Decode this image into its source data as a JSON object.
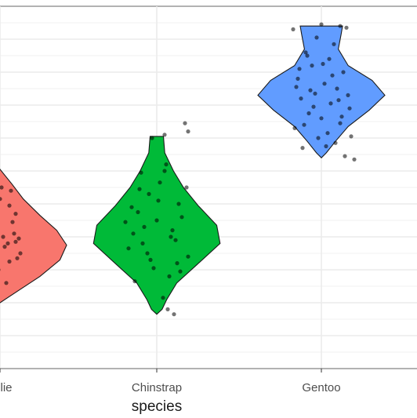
{
  "chart_data": {
    "type": "violin",
    "title": "",
    "xlabel": "species",
    "ylabel": "",
    "categories": [
      "Adelie",
      "Chinstrap",
      "Gentoo"
    ],
    "x_tick_labels": [
      "lie",
      "Chinstrap",
      "Gentoo"
    ],
    "ylim": [
      0,
      22
    ],
    "grid": true,
    "legend": "none",
    "series": [
      {
        "category": "Adelie",
        "color": "#F8766D",
        "range": [
          4.0,
          12.1
        ],
        "profile": [
          [
            4.0,
            0.0
          ],
          [
            4.8,
            0.3
          ],
          [
            5.6,
            0.6
          ],
          [
            6.6,
            0.9
          ],
          [
            7.5,
            1.0
          ],
          [
            8.4,
            0.85
          ],
          [
            9.3,
            0.6
          ],
          [
            10.3,
            0.35
          ],
          [
            11.2,
            0.18
          ],
          [
            12.1,
            0.0
          ]
        ],
        "points": [
          [
            -0.05,
            11.9
          ],
          [
            0.06,
            6.5
          ],
          [
            -0.1,
            7.2
          ],
          [
            0.02,
            8.0
          ],
          [
            -0.08,
            8.6
          ],
          [
            0.1,
            9.4
          ],
          [
            -0.03,
            6.9
          ],
          [
            0.05,
            7.6
          ],
          [
            -0.12,
            5.8
          ],
          [
            0.08,
            8.9
          ],
          [
            0.0,
            10.3
          ],
          [
            -0.06,
            9.8
          ],
          [
            0.12,
            7.9
          ],
          [
            -0.09,
            6.2
          ],
          [
            0.04,
            5.2
          ],
          [
            0.07,
            10.8
          ],
          [
            -0.02,
            9.1
          ],
          [
            0.11,
            6.7
          ],
          [
            -0.07,
            8.3
          ],
          [
            0.03,
            7.4
          ],
          [
            -0.11,
            9.6
          ],
          [
            0.01,
            11.0
          ],
          [
            0.09,
            8.2
          ],
          [
            -0.04,
            5.5
          ],
          [
            0.13,
            7.0
          ],
          [
            -0.13,
            8.8
          ],
          [
            0.06,
            9.9
          ],
          [
            -0.01,
            6.0
          ],
          [
            0.1,
            7.7
          ],
          [
            -0.08,
            10.1
          ]
        ]
      },
      {
        "category": "Chinstrap",
        "color": "#00BA38",
        "range": [
          3.3,
          14.1
        ],
        "profile": [
          [
            3.3,
            0.0
          ],
          [
            3.6,
            0.08
          ],
          [
            4.2,
            0.15
          ],
          [
            5.2,
            0.3
          ],
          [
            6.3,
            0.6
          ],
          [
            7.6,
            0.95
          ],
          [
            8.7,
            0.9
          ],
          [
            9.9,
            0.62
          ],
          [
            11.0,
            0.4
          ],
          [
            12.0,
            0.25
          ],
          [
            13.1,
            0.12
          ],
          [
            14.1,
            0.1
          ]
        ],
        "points": [
          [
            0.05,
            14.2
          ],
          [
            -0.03,
            14.0
          ],
          [
            0.2,
            14.4
          ],
          [
            0.18,
            14.9
          ],
          [
            0.12,
            7.8
          ],
          [
            -0.15,
            8.2
          ],
          [
            0.0,
            9.0
          ],
          [
            -0.08,
            8.6
          ],
          [
            0.1,
            8.4
          ],
          [
            -0.12,
            9.5
          ],
          [
            0.14,
            10.0
          ],
          [
            -0.05,
            10.6
          ],
          [
            0.02,
            11.3
          ],
          [
            -0.1,
            11.9
          ],
          [
            0.06,
            12.4
          ],
          [
            -0.18,
            7.3
          ],
          [
            0.2,
            6.8
          ],
          [
            -0.02,
            6.1
          ],
          [
            0.08,
            5.6
          ],
          [
            -0.14,
            5.3
          ],
          [
            0.04,
            4.3
          ],
          [
            0.07,
            3.6
          ],
          [
            0.11,
            3.3
          ],
          [
            -0.06,
            7.0
          ],
          [
            0.16,
            9.2
          ],
          [
            -0.2,
            8.9
          ],
          [
            0.13,
            6.4
          ],
          [
            -0.09,
            7.6
          ],
          [
            0.01,
            10.2
          ],
          [
            -0.16,
            9.8
          ],
          [
            0.09,
            8.0
          ],
          [
            0.19,
            11.0
          ],
          [
            -0.04,
            6.6
          ],
          [
            0.05,
            12.0
          ],
          [
            -0.11,
            10.9
          ],
          [
            0.15,
            5.9
          ]
        ]
      },
      {
        "category": "Gentoo",
        "color": "#619CFF",
        "range": [
          12.8,
          20.8
        ],
        "profile": [
          [
            12.8,
            0.0
          ],
          [
            13.1,
            0.07
          ],
          [
            13.8,
            0.2
          ],
          [
            14.7,
            0.38
          ],
          [
            15.7,
            0.68
          ],
          [
            16.6,
            0.9
          ],
          [
            17.5,
            0.72
          ],
          [
            18.4,
            0.38
          ],
          [
            19.4,
            0.24
          ],
          [
            20.3,
            0.28
          ],
          [
            20.8,
            0.3
          ]
        ],
        "points": [
          [
            0.0,
            20.9
          ],
          [
            0.12,
            20.8
          ],
          [
            0.16,
            20.7
          ],
          [
            -0.18,
            20.6
          ],
          [
            -0.03,
            20.1
          ],
          [
            0.08,
            19.7
          ],
          [
            -0.1,
            19.2
          ],
          [
            0.05,
            18.8
          ],
          [
            -0.06,
            18.4
          ],
          [
            0.14,
            18.0
          ],
          [
            -0.15,
            17.6
          ],
          [
            0.02,
            17.3
          ],
          [
            0.1,
            17.0
          ],
          [
            -0.04,
            16.7
          ],
          [
            -0.13,
            16.4
          ],
          [
            0.06,
            16.1
          ],
          [
            0.18,
            15.8
          ],
          [
            -0.08,
            15.5
          ],
          [
            0.0,
            15.2
          ],
          [
            0.12,
            14.9
          ],
          [
            -0.17,
            14.6
          ],
          [
            0.04,
            14.3
          ],
          [
            -0.02,
            14.0
          ],
          [
            0.09,
            13.7
          ],
          [
            -0.12,
            13.4
          ],
          [
            0.15,
            12.9
          ],
          [
            0.21,
            12.7
          ],
          [
            -0.07,
            16.9
          ],
          [
            0.11,
            16.3
          ],
          [
            -0.05,
            15.9
          ],
          [
            0.07,
            17.8
          ],
          [
            -0.16,
            17.1
          ],
          [
            0.17,
            16.6
          ],
          [
            0.01,
            18.5
          ],
          [
            -0.11,
            14.8
          ],
          [
            0.13,
            15.3
          ],
          [
            -0.09,
            19.0
          ],
          [
            0.03,
            13.5
          ],
          [
            0.19,
            14.1
          ],
          [
            -0.14,
            18.2
          ]
        ]
      }
    ]
  }
}
